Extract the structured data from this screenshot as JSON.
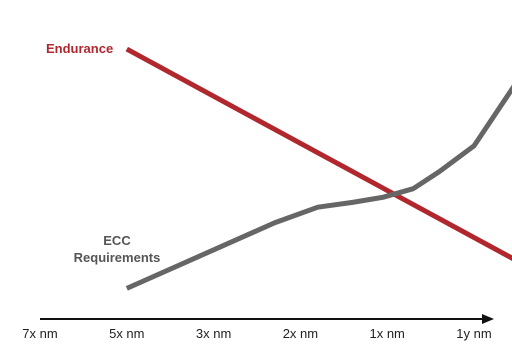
{
  "chart_data": {
    "type": "line",
    "title": "",
    "xlabel": "",
    "ylabel": "",
    "categories": [
      "7x nm",
      "5x nm",
      "3x nm",
      "2x nm",
      "1x nm",
      "1y nm"
    ],
    "ylim": [
      0,
      100
    ],
    "grid": false,
    "legend": "inline labels",
    "y_axis_shown": false,
    "series": [
      {
        "name": "Endurance",
        "color": "#b0282e",
        "x": [
          1,
          5.9
        ],
        "y": [
          87,
          6
        ]
      },
      {
        "name": "ECC Requirements",
        "name_lines": [
          "ECC",
          "Requirements"
        ],
        "color": "#666666",
        "x": [
          1,
          2.7,
          3.2,
          3.6,
          3.95,
          4.3,
          4.6,
          5.0,
          5.55,
          5.9
        ],
        "y": [
          3,
          26,
          31.5,
          33.2,
          35,
          38,
          44,
          53,
          78,
          99
        ]
      }
    ],
    "axis_color": "#111111"
  }
}
